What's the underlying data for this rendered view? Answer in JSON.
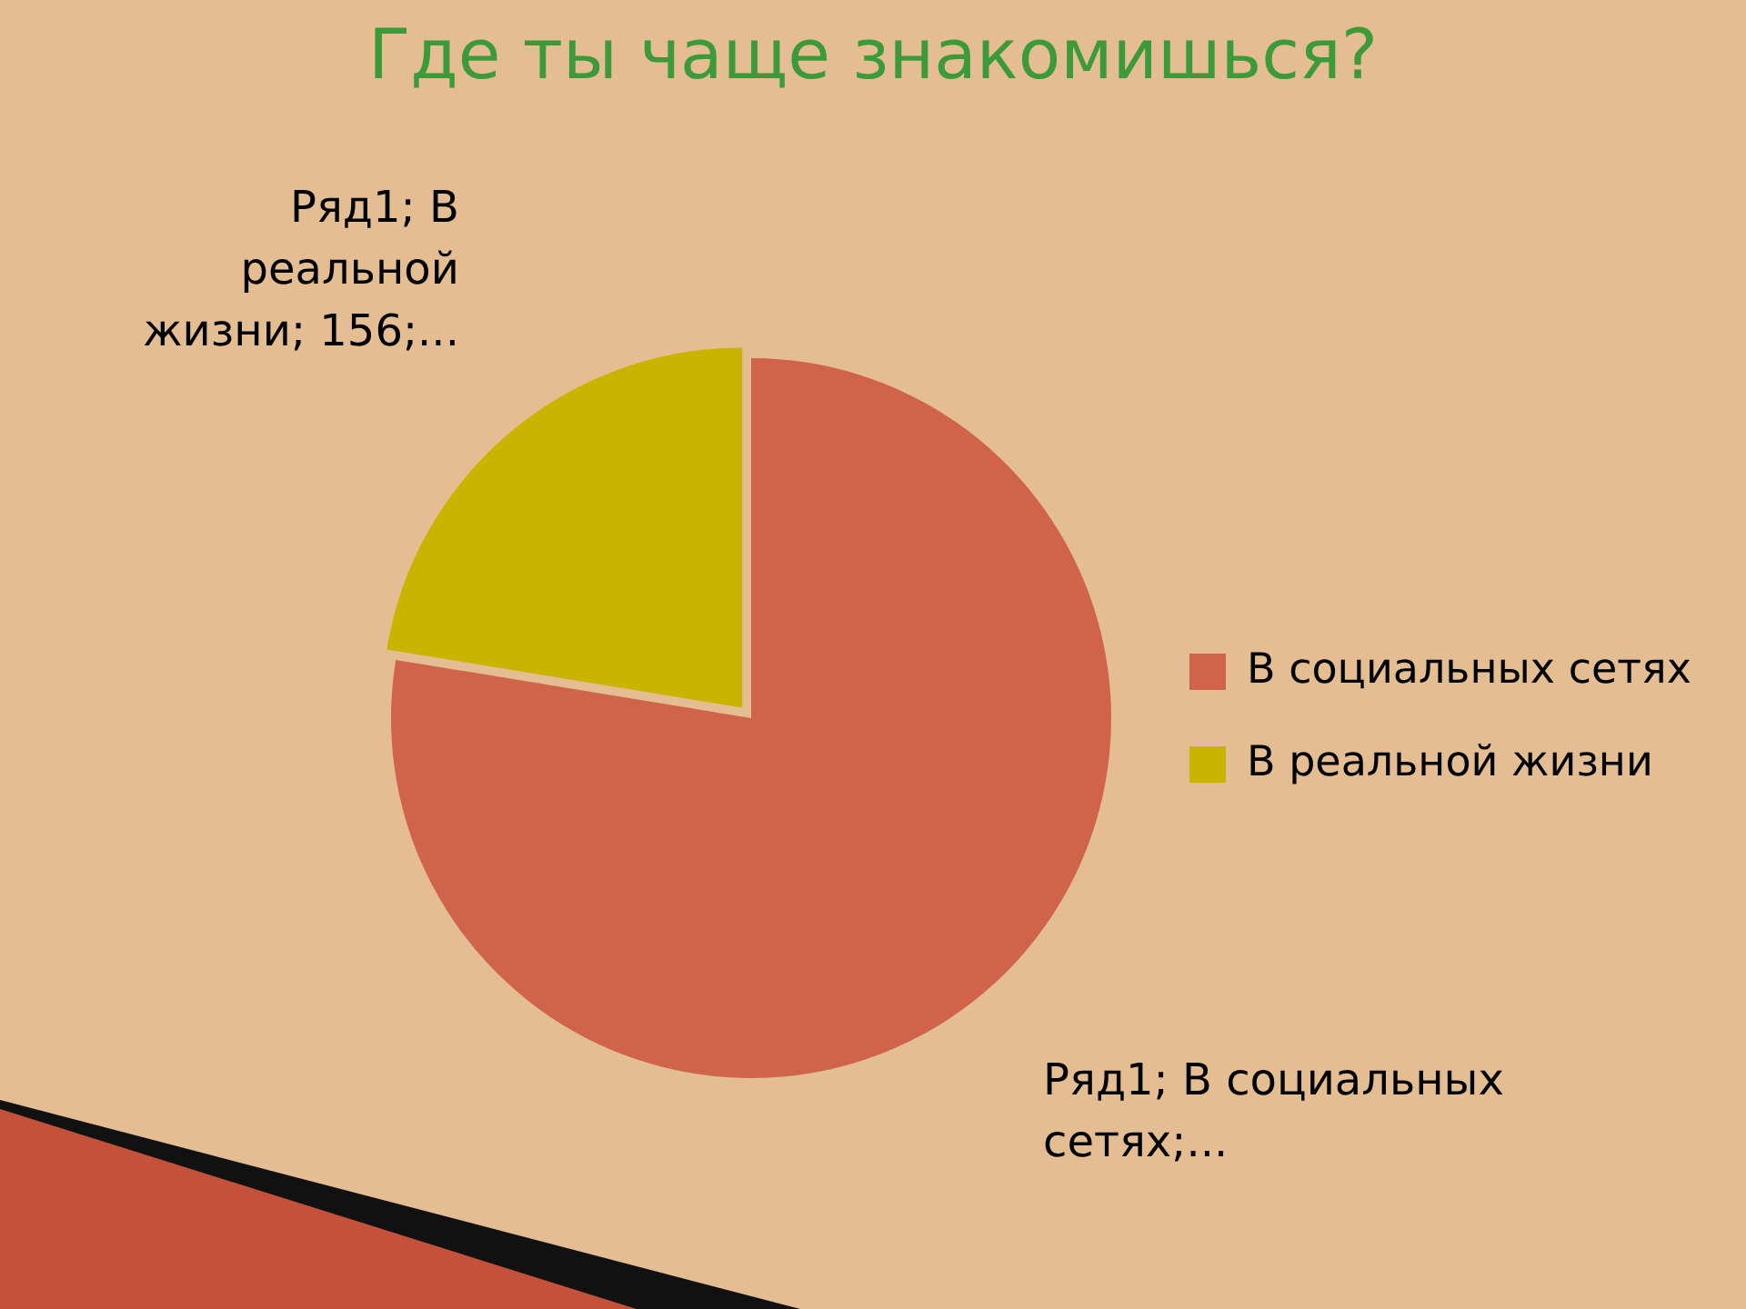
{
  "chart_data": {
    "type": "pie",
    "title": "Где ты чаще знакомишься?",
    "categories": [
      "В социальных сетях",
      "В реальной жизни"
    ],
    "values": [
      540,
      156
    ],
    "colors": [
      "#d0644b",
      "#c9b400"
    ],
    "value_labels": [
      "Ряд1; В социальных сетях;...",
      "Ряд1; В реальной жизни; 156;..."
    ],
    "legend": "right"
  }
}
